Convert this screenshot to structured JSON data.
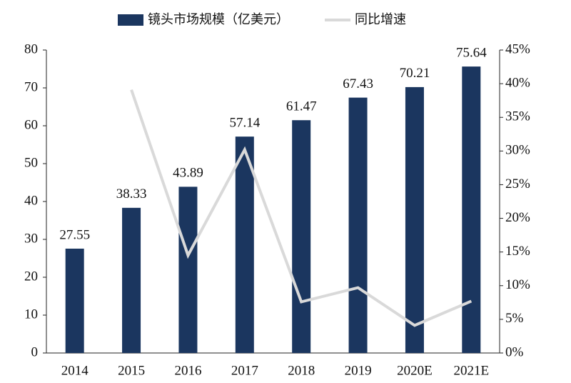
{
  "chart_data": {
    "type": "bar",
    "categories": [
      "2014",
      "2015",
      "2016",
      "2017",
      "2018",
      "2019",
      "2020E",
      "2021E"
    ],
    "series": [
      {
        "name": "镜头市场规模（亿美元）",
        "type": "bar",
        "color": "#1b365f",
        "values": [
          27.55,
          38.33,
          43.89,
          57.14,
          61.47,
          67.43,
          70.21,
          75.64
        ]
      },
      {
        "name": "同比增速",
        "type": "line",
        "axis": "y2",
        "color": "#d9d9d9",
        "values": [
          null,
          39.1,
          14.5,
          30.2,
          7.6,
          9.7,
          4.1,
          7.7
        ]
      }
    ],
    "ylim": [
      0,
      80
    ],
    "yticks": [
      0,
      10,
      20,
      30,
      40,
      50,
      60,
      70,
      80
    ],
    "y2lim": [
      0,
      45
    ],
    "y2ticks": [
      {
        "value": 0,
        "label": "0%"
      },
      {
        "value": 5,
        "label": "5%"
      },
      {
        "value": 10,
        "label": "10%"
      },
      {
        "value": 15,
        "label": "15%"
      },
      {
        "value": 20,
        "label": "20%"
      },
      {
        "value": 25,
        "label": "25%"
      },
      {
        "value": 30,
        "label": "30%"
      },
      {
        "value": 35,
        "label": "35%"
      },
      {
        "value": 40,
        "label": "40%"
      },
      {
        "value": 45,
        "label": "45%"
      }
    ],
    "grid": false
  }
}
